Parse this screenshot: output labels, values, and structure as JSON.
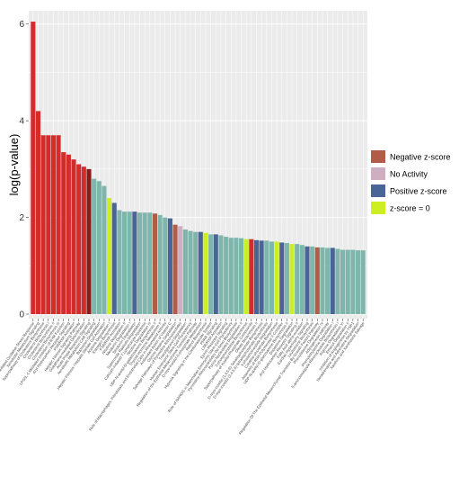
{
  "chart_data": {
    "type": "bar",
    "ylabel": "log(p-value)",
    "ylim": [
      0,
      6.2
    ],
    "yticks": [
      0,
      2,
      4,
      6
    ],
    "grid": true,
    "legend_position": "right",
    "legend": [
      {
        "label": "Negative z-score",
        "color": "#b15c48"
      },
      {
        "label": "No Activity",
        "color": "#cfaec1"
      },
      {
        "label": "Positive z-score",
        "color": "#4b6497"
      },
      {
        "label": "z-score = 0",
        "color": "#ccee22"
      }
    ],
    "colors": {
      "red": "#d42b2b",
      "negative": "#b15c48",
      "no_activity": "#cfaec1",
      "positive": "#4b6497",
      "zero": "#ccee22",
      "teal": "#7fb6ac",
      "darkred": "#8b1a1a"
    },
    "bars": [
      {
        "label": "NRF2-mediated Oxidative Stress Response",
        "value": 6.05,
        "color": "red"
      },
      {
        "label": "Xenobiotic Metabolism Signaling",
        "value": 4.2,
        "color": "red"
      },
      {
        "label": "Superpathway of Cholesterol Biosynthesis",
        "value": 3.7,
        "color": "red"
      },
      {
        "label": "Cholesterol Biosynthesis I",
        "value": 3.7,
        "color": "red"
      },
      {
        "label": "Cholesterol Biosynthesis II",
        "value": 3.7,
        "color": "red"
      },
      {
        "label": "Cholesterol Biosynthesis III",
        "value": 3.7,
        "color": "red"
      },
      {
        "label": "LPS/IL-1 Mediated Inhibition of RXR Function",
        "value": 3.35,
        "color": "red"
      },
      {
        "label": "Aryl Hydrocarbon Receptor Signaling",
        "value": 3.3,
        "color": "red"
      },
      {
        "label": "PXR/RXR Activation",
        "value": 3.2,
        "color": "red"
      },
      {
        "label": "Hepatic Fibrosis Signaling Pathway",
        "value": 3.1,
        "color": "red"
      },
      {
        "label": "Glutathione-mediated Detoxification",
        "value": 3.05,
        "color": "red"
      },
      {
        "label": "Acute Phase Response Signaling",
        "value": 3.0,
        "color": "darkred"
      },
      {
        "label": "Xenobiotic Metabolism CAR Signaling",
        "value": 2.8,
        "color": "teal"
      },
      {
        "label": "Bupropion Degradation",
        "value": 2.75,
        "color": "teal"
      },
      {
        "label": "Hepatic Fibrosis / Hepatic Stellate Cell Activation",
        "value": 2.65,
        "color": "teal"
      },
      {
        "label": "Acetone Degradation I",
        "value": 2.4,
        "color": "zero"
      },
      {
        "label": "Estrogen Biosynthesis",
        "value": 2.3,
        "color": "positive"
      },
      {
        "label": "FXR/RXR Activation",
        "value": 2.15,
        "color": "teal"
      },
      {
        "label": "Nicotine Degradation II",
        "value": 2.12,
        "color": "teal"
      },
      {
        "label": "Melatonin Degradation I",
        "value": 2.12,
        "color": "teal"
      },
      {
        "label": "Serotonin Degradation",
        "value": 2.12,
        "color": "positive"
      },
      {
        "label": "Superoxide Radicals Degradation",
        "value": 2.1,
        "color": "teal"
      },
      {
        "label": "Calcium-induced T Lymphocyte Apoptosis",
        "value": 2.1,
        "color": "teal"
      },
      {
        "label": "Nicotine Degradation III",
        "value": 2.1,
        "color": "teal"
      },
      {
        "label": "UDP-N-acetyl-D-galactosamine Biosynthesis II",
        "value": 2.08,
        "color": "negative"
      },
      {
        "label": "Thyroid Hormone Metabolism II",
        "value": 2.05,
        "color": "teal"
      },
      {
        "label": "Role of Macrophages, Fibroblasts and Endothelial Cells in Rheumatoid Arthritis",
        "value": 2.0,
        "color": "teal"
      },
      {
        "label": "Antioxidant Action of Vitamin C",
        "value": 1.98,
        "color": "positive"
      },
      {
        "label": "Glycine Betaine Degradation",
        "value": 1.85,
        "color": "negative"
      },
      {
        "label": "Salvage Pathways of Pyrimidine Ribonucleotides",
        "value": 1.82,
        "color": "no_activity"
      },
      {
        "label": "Triacylglycerol Degradation",
        "value": 1.75,
        "color": "teal"
      },
      {
        "label": "Human Embryonic Stem Cell Pluripotency",
        "value": 1.72,
        "color": "teal"
      },
      {
        "label": "Regulation of the Epithelial-Mesenchymal Transition Pathway",
        "value": 1.7,
        "color": "teal"
      },
      {
        "label": "D-myo-inositol-5-phosphate Metabolism",
        "value": 1.7,
        "color": "positive"
      },
      {
        "label": "Retinol Biosynthesis",
        "value": 1.68,
        "color": "zero"
      },
      {
        "label": "Hypoxia Signaling in the Cardiovascular System",
        "value": 1.65,
        "color": "teal"
      },
      {
        "label": "PPAR Signaling",
        "value": 1.65,
        "color": "positive"
      },
      {
        "label": "LXR/RXR Activation",
        "value": 1.63,
        "color": "teal"
      },
      {
        "label": "Ephrin Receptor Signaling",
        "value": 1.6,
        "color": "teal"
      },
      {
        "label": "Role of NANOG in Mammalian Embryonic Stem Cell Pluripotency",
        "value": 1.58,
        "color": "teal"
      },
      {
        "label": "Pyrimidine Ribonucleotides De Novo Biosynthesis",
        "value": 1.58,
        "color": "teal"
      },
      {
        "label": "Purine Nucleotides Degradation II",
        "value": 1.57,
        "color": "teal"
      },
      {
        "label": "3-phosphoinositide Biosynthesis",
        "value": 1.55,
        "color": "zero"
      },
      {
        "label": "Superpathway of Inositol Phosphate Compounds",
        "value": 1.55,
        "color": "red"
      },
      {
        "label": "Oleate Biosynthesis II",
        "value": 1.53,
        "color": "positive"
      },
      {
        "label": "D-myo-inositol (1,4,5,6)-Tetrakisphosphate Biosynthesis",
        "value": 1.52,
        "color": "positive"
      },
      {
        "label": "D-myo-inositol (3,4,5,6)-tetrakisphosphate Biosynthesis",
        "value": 1.52,
        "color": "teal"
      },
      {
        "label": "3-phosphoinositide Degradation",
        "value": 1.5,
        "color": "teal"
      },
      {
        "label": "Creatine-phosphate Biosynthesis",
        "value": 1.5,
        "color": "zero"
      },
      {
        "label": "Assembly of RNA Polymerase II Complex",
        "value": 1.48,
        "color": "positive"
      },
      {
        "label": "UDP-N-acetyl-D-glucosamine Biosynthesis II",
        "value": 1.47,
        "color": "teal"
      },
      {
        "label": "Dopamine Degradation",
        "value": 1.45,
        "color": "zero"
      },
      {
        "label": "Aryl Hydrocarbon Receptor Signaling II",
        "value": 1.45,
        "color": "teal"
      },
      {
        "label": "Fatty Acid alpha-oxidation",
        "value": 1.43,
        "color": "teal"
      },
      {
        "label": "Cardiac Hypertrophy Signaling",
        "value": 1.4,
        "color": "positive"
      },
      {
        "label": "Leukotriene Biosynthesis",
        "value": 1.4,
        "color": "teal"
      },
      {
        "label": "Regulation Of The Epithelial Mesenchymal Transition By Growth Factors Pathway",
        "value": 1.38,
        "color": "negative"
      },
      {
        "label": "Phenylalanine Degradation IV",
        "value": 1.38,
        "color": "teal"
      },
      {
        "label": "Adipogenesis pathway",
        "value": 1.37,
        "color": "teal"
      },
      {
        "label": "Phenylethylamine Degradation I",
        "value": 1.37,
        "color": "positive"
      },
      {
        "label": "5-aminoimidazole Ribonucleotide Biosynthesis I",
        "value": 1.35,
        "color": "teal"
      },
      {
        "label": "Arginine Degradation VI",
        "value": 1.33,
        "color": "teal"
      },
      {
        "label": "Ethanol Degradation II",
        "value": 1.33,
        "color": "teal"
      },
      {
        "label": "Inhibition of Angiogenesis by TSP1",
        "value": 1.33,
        "color": "teal"
      },
      {
        "label": "Noradrenaline and Adrenaline Degradation",
        "value": 1.32,
        "color": "teal"
      },
      {
        "label": "Xanthine and Xanthosine Salvage",
        "value": 1.32,
        "color": "teal"
      }
    ]
  }
}
